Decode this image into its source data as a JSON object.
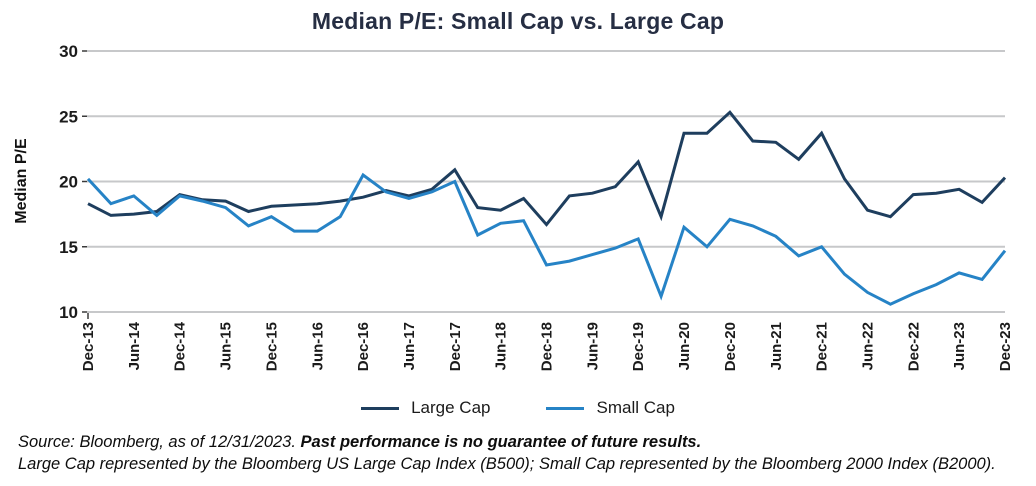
{
  "title": "Median P/E: Small Cap vs. Large Cap",
  "chart_data": {
    "type": "line",
    "title": "Median P/E: Small Cap vs. Large Cap",
    "ylabel": "Median P/E",
    "xlabel": "",
    "ylim": [
      10,
      30
    ],
    "yticks": [
      10,
      15,
      20,
      25,
      30
    ],
    "grid": "horizontal",
    "legend_position": "bottom",
    "points": {
      "start": "Dec-13",
      "end": "Dec-23",
      "frequency": "quarterly",
      "count": 41
    },
    "points_per_tick": 2,
    "x_tick_labels": [
      "Dec-13",
      "Jun-14",
      "Dec-14",
      "Jun-15",
      "Dec-15",
      "Jun-16",
      "Dec-16",
      "Jun-17",
      "Dec-17",
      "Jun-18",
      "Dec-18",
      "Jun-19",
      "Dec-19",
      "Jun-20",
      "Dec-20",
      "Jun-21",
      "Dec-21",
      "Jun-22",
      "Dec-22",
      "Jun-23",
      "Dec-23"
    ],
    "series": [
      {
        "name": "Large Cap",
        "color": "#1e3e5e",
        "values": [
          18.3,
          17.4,
          17.5,
          17.7,
          19.0,
          18.6,
          18.5,
          17.7,
          18.1,
          18.2,
          18.3,
          18.5,
          18.8,
          19.3,
          18.9,
          19.4,
          20.9,
          18.0,
          17.8,
          18.7,
          16.7,
          18.9,
          19.1,
          19.6,
          21.5,
          17.3,
          23.7,
          23.7,
          25.3,
          23.1,
          23.0,
          21.7,
          23.7,
          20.2,
          17.8,
          17.3,
          19.0,
          19.1,
          19.4,
          18.4,
          20.3
        ]
      },
      {
        "name": "Small Cap",
        "color": "#2683c6",
        "values": [
          20.2,
          18.3,
          18.9,
          17.4,
          18.9,
          18.5,
          18.0,
          16.6,
          17.3,
          16.2,
          16.2,
          17.3,
          20.5,
          19.2,
          18.7,
          19.2,
          20.0,
          15.9,
          16.8,
          17.0,
          13.6,
          13.9,
          14.4,
          14.9,
          15.6,
          11.2,
          16.5,
          15.0,
          17.1,
          16.6,
          15.8,
          14.3,
          15.0,
          12.9,
          11.5,
          10.6,
          11.4,
          12.1,
          13.0,
          12.5,
          14.7
        ]
      }
    ]
  },
  "footnote": {
    "line1_normal": "Source: Bloomberg, as of 12/31/2023. ",
    "line1_bold": "Past performance is no guarantee of future results.",
    "line2": "Large Cap represented by the Bloomberg US Large Cap Index (B500); Small Cap represented by the Bloomberg 2000 Index (B2000)."
  },
  "colors": {
    "title_text": "#262e43",
    "axis_text": "#1b1b1b",
    "gridline": "#c7c8ca",
    "large_cap_line": "#1e3e5e",
    "small_cap_line": "#2683c6"
  }
}
